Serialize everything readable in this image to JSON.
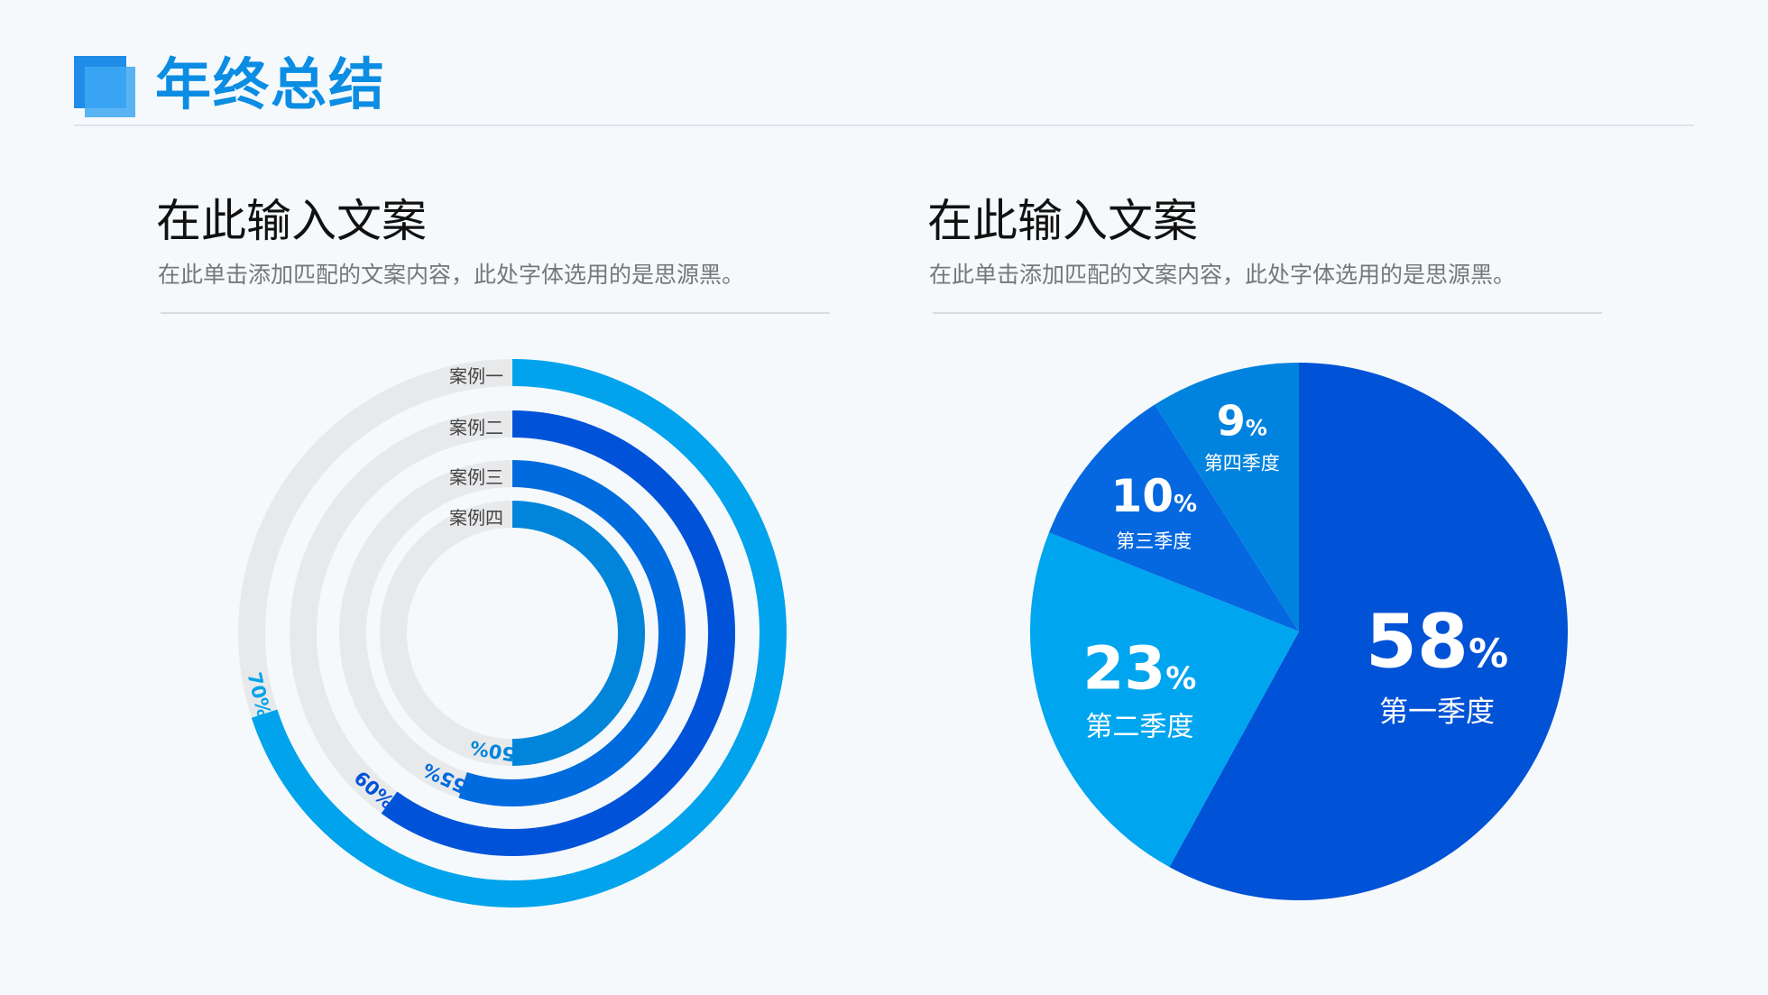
{
  "header": {
    "title": "年终总结"
  },
  "sections": [
    {
      "title": "在此输入文案",
      "description": "在此单击添加匹配的文案内容，此处字体选用的是思源黑。"
    },
    {
      "title": "在此输入文案",
      "description": "在此单击添加匹配的文案内容，此处字体选用的是思源黑。"
    }
  ],
  "colors": {
    "title_blue": "#0b8de3",
    "track_gray": "#e8e9eb",
    "ring_1": "#00a3ec",
    "ring_2": "#0053d9",
    "ring_3": "#006bde",
    "ring_4": "#0085db",
    "pie_1": "#0052d6",
    "pie_2": "#00a5ef",
    "pie_3": "#0568e0",
    "pie_4": "#0083de"
  },
  "chart_data": [
    {
      "type": "radial-bar",
      "categories": [
        "案例一",
        "案例二",
        "案例三",
        "案例四"
      ],
      "values": [
        70,
        60,
        55,
        50
      ],
      "value_labels": [
        "70%",
        "60%",
        "55%",
        "50%"
      ],
      "max": 100
    },
    {
      "type": "pie",
      "categories": [
        "第一季度",
        "第二季度",
        "第三季度",
        "第四季度"
      ],
      "values": [
        58,
        23,
        10,
        9
      ],
      "number_labels": [
        "58",
        "23",
        "10",
        "9"
      ],
      "unit": "%"
    }
  ]
}
